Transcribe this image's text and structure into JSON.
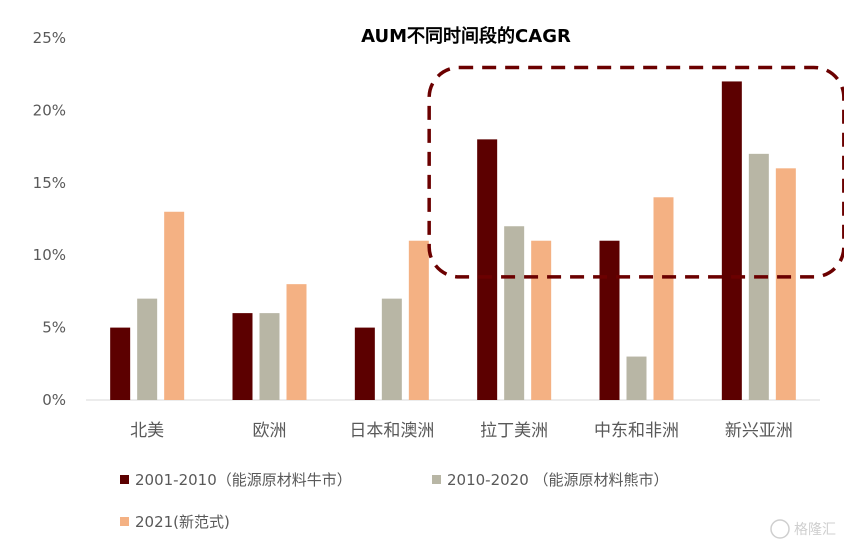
{
  "chart_data": {
    "type": "bar",
    "title": "AUM不同时间段的CAGR",
    "xlabel": "",
    "ylabel": "",
    "categories": [
      "北美",
      "欧洲",
      "日本和澳洲",
      "拉丁美洲",
      "中东和非洲",
      "新兴亚洲"
    ],
    "series": [
      {
        "name": "2001-2010（能源原材料牛市）",
        "values": [
          5,
          6,
          5,
          18,
          11,
          22
        ],
        "color": "#5c0000"
      },
      {
        "name": "2010-2020 （能源原材料熊市）",
        "values": [
          7,
          6,
          7,
          12,
          3,
          17
        ],
        "color": "#b8b6a5"
      },
      {
        "name": "2021(新范式)",
        "values": [
          13,
          8,
          11,
          11,
          14,
          16
        ],
        "color": "#f4b183"
      }
    ],
    "ylim": [
      0,
      25
    ],
    "yticks": [
      0,
      5,
      10,
      15,
      20,
      25
    ],
    "ytick_labels": [
      "0%",
      "5%",
      "10%",
      "15%",
      "20%",
      "25%"
    ],
    "grid": false,
    "legend_position": "bottom",
    "highlight_color": "#6b0000",
    "highlight_range": [
      "拉丁美洲",
      "新兴亚洲"
    ]
  },
  "watermark": "格隆汇"
}
